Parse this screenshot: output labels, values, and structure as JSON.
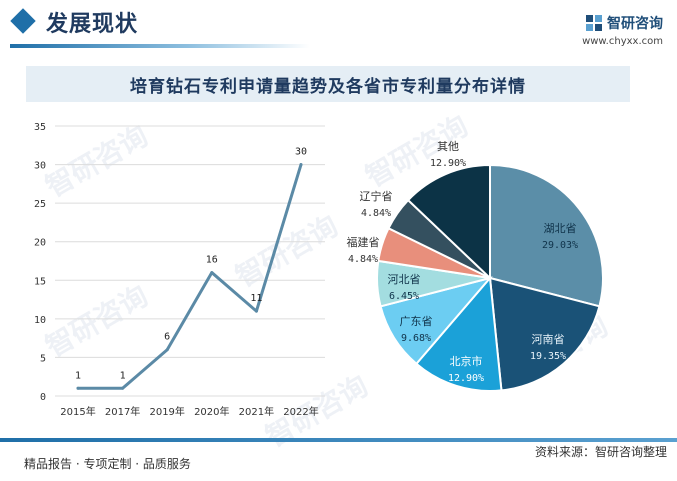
{
  "header": {
    "section_title": "发展现状",
    "brand_name": "智研咨询",
    "brand_url": "www.chyxx.com"
  },
  "chart_title": "培育钻石专利申请量趋势及各省市专利量分布详情",
  "footer": {
    "left_text": "精品报告 · 专项定制 · 品质服务",
    "source_text": "资料来源：智研咨询整理"
  },
  "watermark_text": "智研咨询",
  "colors": {
    "line": "#5b8aa6",
    "grid": "#dcdcdc",
    "accent": "#1f6fa8",
    "title_band": "#e5eef5"
  },
  "chart_data": [
    {
      "type": "line",
      "title": "",
      "xlabel": "",
      "ylabel": "",
      "categories": [
        "2015年",
        "2017年",
        "2019年",
        "2020年",
        "2021年",
        "2022年"
      ],
      "series": [
        {
          "values": [
            1,
            1,
            6,
            16,
            11,
            30
          ]
        }
      ],
      "data_labels": [
        "1",
        "1",
        "6",
        "16",
        "11",
        "30"
      ],
      "ylim": [
        0,
        35
      ],
      "yticks": [
        0,
        5,
        10,
        15,
        20,
        25,
        30,
        35
      ],
      "ytick_labels": [
        "0",
        "5",
        "10",
        "15",
        "20",
        "25",
        "30",
        "35"
      ],
      "grid": true
    },
    {
      "type": "pie",
      "title": "",
      "slices": [
        {
          "label": "湖北省",
          "value": 29.03,
          "value_label": "29.03%",
          "color": "#5b8ea8"
        },
        {
          "label": "河南省",
          "value": 19.35,
          "value_label": "19.35%",
          "color": "#1a5277"
        },
        {
          "label": "北京市",
          "value": 12.9,
          "value_label": "12.90%",
          "color": "#1ba1d8"
        },
        {
          "label": "广东省",
          "value": 9.68,
          "value_label": "9.68%",
          "color": "#6ccdf2"
        },
        {
          "label": "河北省",
          "value": 6.45,
          "value_label": "6.45%",
          "color": "#a3dde0"
        },
        {
          "label": "福建省",
          "value": 4.84,
          "value_label": "4.84%",
          "color": "#e88f7c"
        },
        {
          "label": "辽宁省",
          "value": 4.84,
          "value_label": "4.84%",
          "color": "#34505f"
        },
        {
          "label": "其他",
          "value": 12.9,
          "value_label": "12.90%",
          "color": "#0c3346"
        }
      ]
    }
  ]
}
